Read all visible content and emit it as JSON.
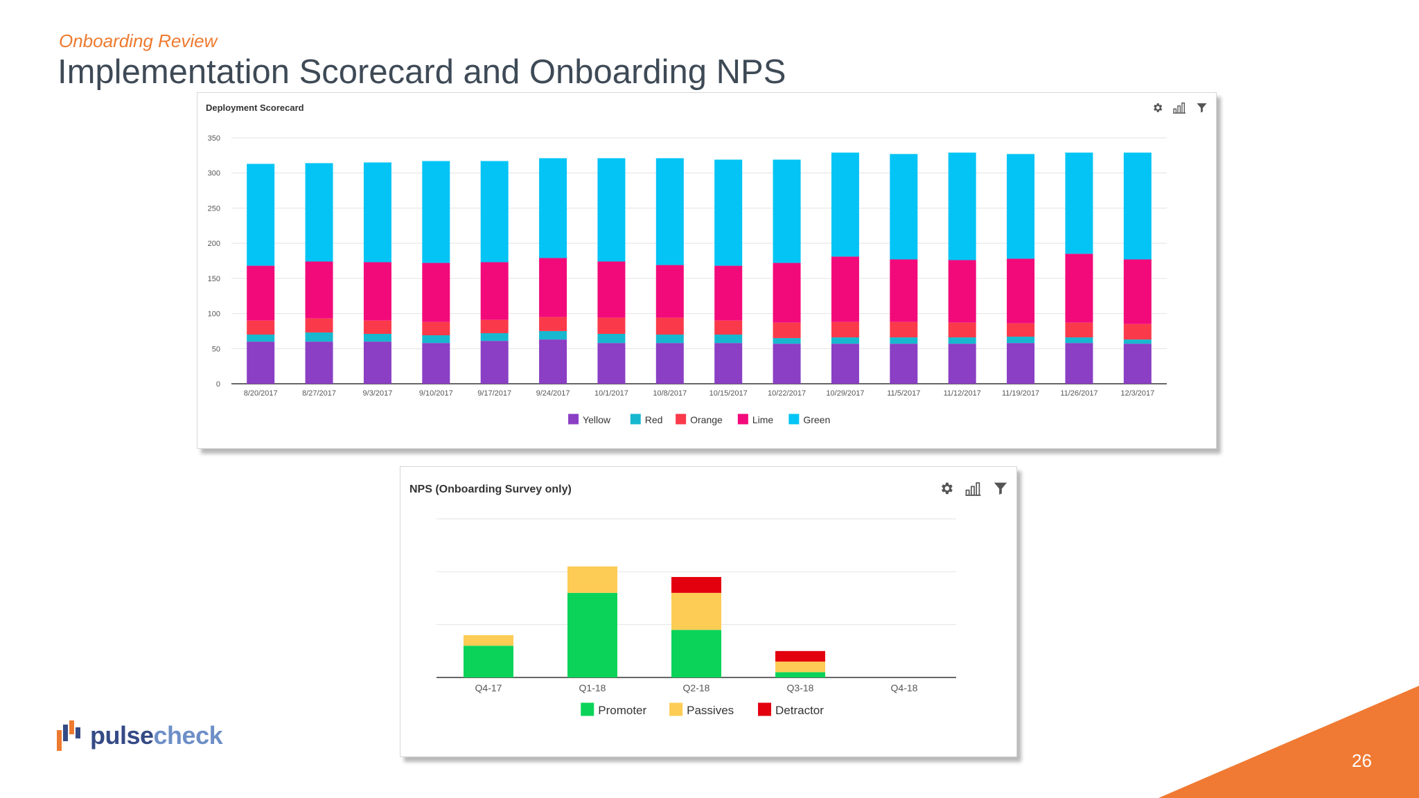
{
  "header": {
    "subtitle": "Onboarding Review",
    "title": "Implementation Scorecard and Onboarding NPS"
  },
  "footer": {
    "page_number": "26",
    "logo_text_1": "pulse",
    "logo_text_2": "check"
  },
  "colors": {
    "accent_orange": "#ee7a2f",
    "title_gray": "#3e4a56",
    "logo_navy": "#354b86",
    "logo_blue": "#6e8fc7"
  },
  "icons": [
    "gear-icon",
    "bar-chart-icon",
    "filter-icon"
  ],
  "chart_data": [
    {
      "type": "bar",
      "stacked": true,
      "title": "Deployment Scorecard",
      "categories": [
        "8/20/2017",
        "8/27/2017",
        "9/3/2017",
        "9/10/2017",
        "9/17/2017",
        "9/24/2017",
        "10/1/2017",
        "10/8/2017",
        "10/15/2017",
        "10/22/2017",
        "10/29/2017",
        "11/5/2017",
        "11/12/2017",
        "11/19/2017",
        "11/26/2017",
        "12/3/2017"
      ],
      "ylim": [
        0,
        350
      ],
      "yticks": [
        0,
        50,
        100,
        150,
        200,
        250,
        300,
        350
      ],
      "grid": true,
      "legend": "bottom",
      "series": [
        {
          "name": "Yellow",
          "color": "#8a3fc4",
          "values": [
            60,
            60,
            60,
            58,
            61,
            63,
            58,
            58,
            58,
            57,
            57,
            57,
            57,
            58,
            58,
            57
          ]
        },
        {
          "name": "Red",
          "color": "#17b8cf",
          "values": [
            10,
            13,
            11,
            11,
            11,
            12,
            13,
            12,
            12,
            8,
            9,
            9,
            9,
            9,
            8,
            6
          ]
        },
        {
          "name": "Orange",
          "color": "#fa3a4a",
          "values": [
            20,
            20,
            19,
            19,
            19,
            20,
            23,
            24,
            20,
            22,
            22,
            22,
            21,
            19,
            21,
            22
          ]
        },
        {
          "name": "Lime",
          "color": "#f20a7a",
          "values": [
            78,
            81,
            83,
            84,
            82,
            84,
            80,
            75,
            78,
            85,
            93,
            89,
            89,
            92,
            98,
            92
          ]
        },
        {
          "name": "Green",
          "color": "#04c4f5",
          "values": [
            145,
            140,
            142,
            145,
            144,
            142,
            147,
            152,
            151,
            147,
            148,
            150,
            153,
            149,
            144,
            152
          ]
        }
      ]
    },
    {
      "type": "bar",
      "stacked": true,
      "title": "NPS (Onboarding Survey only)",
      "categories": [
        "Q4-17",
        "Q1-18",
        "Q2-18",
        "Q3-18",
        "Q4-18"
      ],
      "ylim": [
        0,
        30
      ],
      "grid": true,
      "legend": "bottom",
      "series": [
        {
          "name": "Promoter",
          "color": "#0bd35a",
          "values": [
            6,
            16,
            9,
            1,
            0
          ]
        },
        {
          "name": "Passives",
          "color": "#fdcc55",
          "values": [
            2,
            5,
            7,
            2,
            0
          ]
        },
        {
          "name": "Detractor",
          "color": "#e3000e",
          "values": [
            0,
            0,
            3,
            2,
            0
          ]
        }
      ]
    }
  ]
}
